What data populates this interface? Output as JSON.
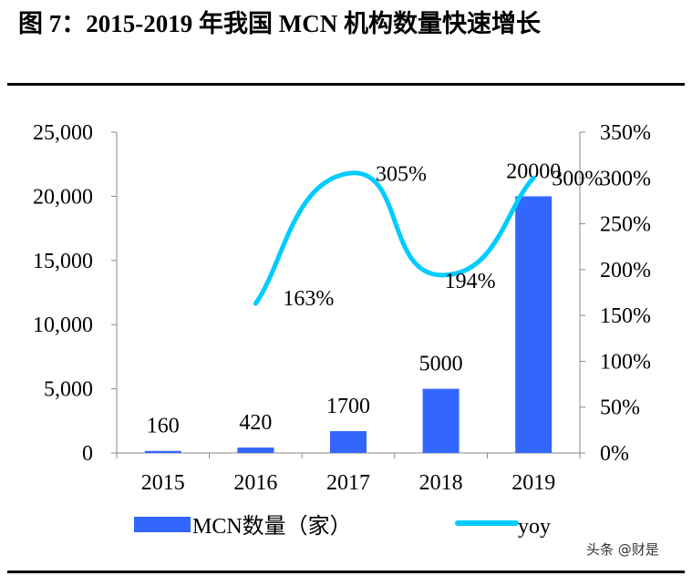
{
  "title": "图 7：2015-2019 年我国 MCN 机构数量快速增长",
  "watermark": "头条 @财是",
  "chart_data": {
    "type": "bar+line",
    "categories": [
      "2015",
      "2016",
      "2017",
      "2018",
      "2019"
    ],
    "series": [
      {
        "name": "MCN数量（家）",
        "type": "bar",
        "axis": "left",
        "color": "#3366FF",
        "values": [
          160,
          420,
          1700,
          5000,
          20000
        ],
        "labels": [
          "160",
          "420",
          "1700",
          "5000",
          "20000"
        ]
      },
      {
        "name": "yoy",
        "type": "line",
        "axis": "right",
        "color": "#00CCFF",
        "values": [
          null,
          163,
          305,
          194,
          300
        ],
        "labels": [
          "",
          "163%",
          "305%",
          "194%",
          "300%"
        ]
      }
    ],
    "left_axis": {
      "range": [
        0,
        25000
      ],
      "ticks": [
        "0",
        "5,000",
        "10,000",
        "15,000",
        "20,000",
        "25,000"
      ]
    },
    "right_axis": {
      "range": [
        0,
        350
      ],
      "unit": "%",
      "ticks": [
        "0%",
        "50%",
        "100%",
        "150%",
        "200%",
        "250%",
        "300%",
        "350%"
      ]
    },
    "grid": false,
    "legend_placement": "bottom"
  }
}
